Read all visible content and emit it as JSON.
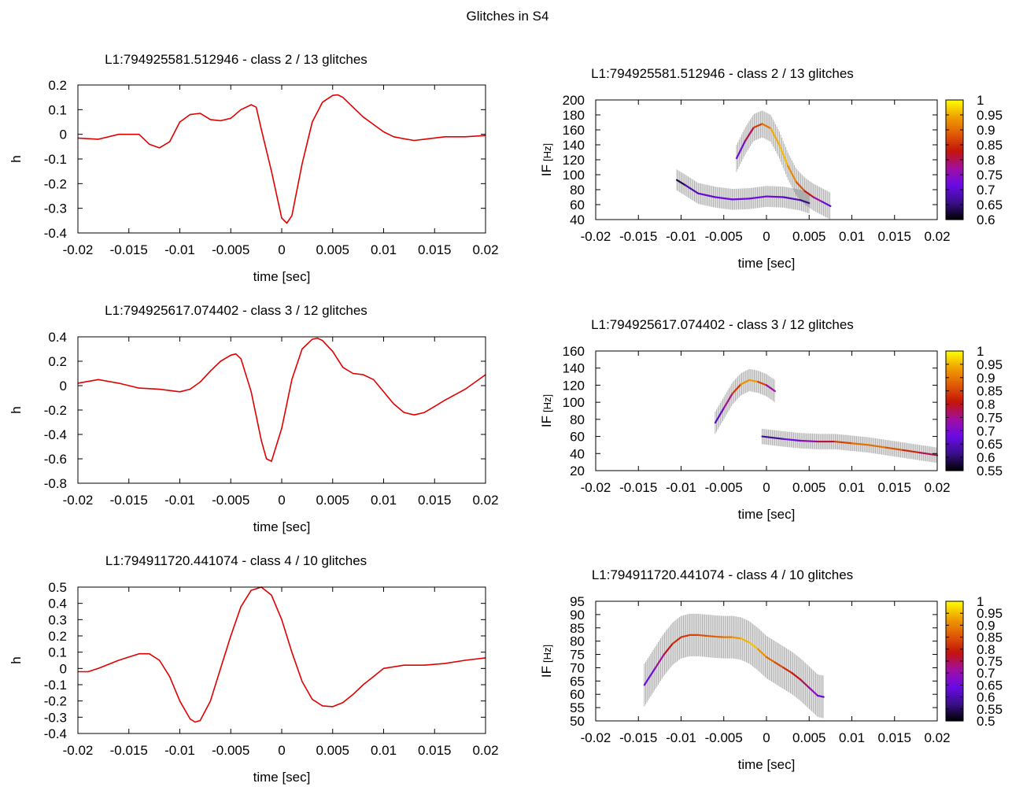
{
  "figure": {
    "title": "Glitches in S4"
  },
  "colorbar_colors": [
    "#000000",
    "#3a0f8a",
    "#6a0ae6",
    "#a00fa0",
    "#c4140a",
    "#e05a06",
    "#f0a000",
    "#ffff00"
  ],
  "chart_data": [
    {
      "id": "wave-1",
      "type": "line",
      "title": "L1:794925581.512946 - class 2 / 13 glitches",
      "xlabel": "time [sec]",
      "ylabel": "h",
      "xlim": [
        -0.02,
        0.02
      ],
      "ylim": [
        -0.4,
        0.2
      ],
      "xticks": [
        -0.02,
        -0.015,
        -0.01,
        -0.005,
        0,
        0.005,
        0.01,
        0.015,
        0.02
      ],
      "xtick_labels": [
        "-0.02",
        "-0.015",
        "-0.01",
        "-0.005",
        "0",
        "0.005",
        "0.01",
        "0.015",
        "0.02"
      ],
      "yticks": [
        -0.4,
        -0.3,
        -0.2,
        -0.1,
        0,
        0.1,
        0.2
      ],
      "ytick_labels": [
        "-0.4",
        "-0.3",
        "-0.2",
        "-0.1",
        "0",
        "0.1",
        "0.2"
      ],
      "series": [
        {
          "name": "h",
          "color": "#e00000",
          "x": [
            -0.02,
            -0.018,
            -0.016,
            -0.014,
            -0.013,
            -0.012,
            -0.011,
            -0.01,
            -0.009,
            -0.008,
            -0.007,
            -0.006,
            -0.005,
            -0.004,
            -0.003,
            -0.0025,
            -0.002,
            -0.001,
            0,
            0.0005,
            0.001,
            0.002,
            0.003,
            0.004,
            0.005,
            0.0055,
            0.006,
            0.007,
            0.008,
            0.009,
            0.01,
            0.011,
            0.012,
            0.013,
            0.014,
            0.016,
            0.018,
            0.02
          ],
          "y": [
            -0.015,
            -0.02,
            0.0,
            0.0,
            -0.04,
            -0.055,
            -0.03,
            0.05,
            0.08,
            0.085,
            0.06,
            0.055,
            0.065,
            0.1,
            0.12,
            0.11,
            0.02,
            -0.15,
            -0.34,
            -0.36,
            -0.33,
            -0.12,
            0.05,
            0.13,
            0.158,
            0.16,
            0.15,
            0.11,
            0.07,
            0.04,
            0.01,
            -0.01,
            -0.018,
            -0.025,
            -0.02,
            -0.01,
            -0.01,
            -0.005
          ]
        }
      ]
    },
    {
      "id": "if-1",
      "type": "line",
      "title": "L1:794925581.512946 - class 2 / 13 glitches",
      "xlabel": "time [sec]",
      "ylabel": "IF",
      "ylabel_unit": "[Hz]",
      "xlim": [
        -0.02,
        0.02
      ],
      "ylim": [
        40,
        200
      ],
      "xticks": [
        -0.02,
        -0.015,
        -0.01,
        -0.005,
        0,
        0.005,
        0.01,
        0.015,
        0.02
      ],
      "xtick_labels": [
        "-0.02",
        "-0.015",
        "-0.01",
        "-0.005",
        "0",
        "0.005",
        "0.01",
        "0.015",
        "0.02"
      ],
      "yticks": [
        40,
        60,
        80,
        100,
        120,
        140,
        160,
        180,
        200
      ],
      "ytick_labels": [
        "40",
        "60",
        "80",
        "100",
        "120",
        "140",
        "160",
        "180",
        "200"
      ],
      "cb_range": [
        0.6,
        1
      ],
      "cb_ticks": [
        0.6,
        0.65,
        0.7,
        0.75,
        0.8,
        0.85,
        0.9,
        0.95,
        1
      ],
      "cb_tick_labels": [
        "0.6",
        "0.65",
        "0.7",
        "0.75",
        "0.8",
        "0.85",
        "0.9",
        "0.95",
        "1"
      ],
      "series": [
        {
          "name": "component-1",
          "error": 14,
          "x": [
            -0.0105,
            -0.0095,
            -0.008,
            -0.006,
            -0.004,
            -0.002,
            0,
            0.002,
            0.004,
            0.005
          ],
          "y": [
            93,
            86,
            75,
            70,
            67,
            68,
            71,
            70,
            66,
            62
          ],
          "c": [
            0.6,
            0.66,
            0.7,
            0.71,
            0.72,
            0.72,
            0.72,
            0.7,
            0.67,
            0.64
          ]
        },
        {
          "name": "component-2",
          "error": 18,
          "x": [
            -0.0035,
            -0.0025,
            -0.0015,
            -0.0005,
            0.0005,
            0.0015,
            0.0025,
            0.0035,
            0.0045,
            0.0055,
            0.0065,
            0.0075
          ],
          "y": [
            122,
            145,
            163,
            168,
            162,
            140,
            112,
            90,
            78,
            70,
            64,
            58
          ],
          "c": [
            0.68,
            0.76,
            0.84,
            0.88,
            0.93,
            0.97,
            0.95,
            0.9,
            0.86,
            0.8,
            0.74,
            0.68
          ]
        }
      ]
    },
    {
      "id": "wave-2",
      "type": "line",
      "title": "L1:794925617.074402 - class 3 / 12 glitches",
      "xlabel": "time [sec]",
      "ylabel": "h",
      "xlim": [
        -0.02,
        0.02
      ],
      "ylim": [
        -0.8,
        0.4
      ],
      "xticks": [
        -0.02,
        -0.015,
        -0.01,
        -0.005,
        0,
        0.005,
        0.01,
        0.015,
        0.02
      ],
      "xtick_labels": [
        "-0.02",
        "-0.015",
        "-0.01",
        "-0.005",
        "0",
        "0.005",
        "0.01",
        "0.015",
        "0.02"
      ],
      "yticks": [
        -0.8,
        -0.6,
        -0.4,
        -0.2,
        0,
        0.2,
        0.4
      ],
      "ytick_labels": [
        "-0.8",
        "-0.6",
        "-0.4",
        "-0.2",
        "0",
        "0.2",
        "0.4"
      ],
      "series": [
        {
          "name": "h",
          "color": "#e00000",
          "x": [
            -0.02,
            -0.018,
            -0.016,
            -0.014,
            -0.012,
            -0.01,
            -0.009,
            -0.008,
            -0.007,
            -0.006,
            -0.005,
            -0.0045,
            -0.004,
            -0.003,
            -0.002,
            -0.0015,
            -0.001,
            0,
            0.001,
            0.002,
            0.003,
            0.0035,
            0.004,
            0.005,
            0.006,
            0.007,
            0.008,
            0.009,
            0.01,
            0.011,
            0.012,
            0.013,
            0.014,
            0.015,
            0.016,
            0.018,
            0.02
          ],
          "y": [
            0.02,
            0.05,
            0.02,
            -0.02,
            -0.03,
            -0.05,
            -0.03,
            0.03,
            0.12,
            0.2,
            0.25,
            0.26,
            0.22,
            -0.05,
            -0.45,
            -0.6,
            -0.62,
            -0.35,
            0.05,
            0.3,
            0.38,
            0.39,
            0.37,
            0.28,
            0.15,
            0.1,
            0.09,
            0.05,
            -0.05,
            -0.15,
            -0.22,
            -0.24,
            -0.22,
            -0.17,
            -0.12,
            -0.03,
            0.09
          ]
        }
      ]
    },
    {
      "id": "if-2",
      "type": "line",
      "title": "L1:794925617.074402 - class 3 / 12 glitches",
      "xlabel": "time [sec]",
      "ylabel": "IF",
      "ylabel_unit": "[Hz]",
      "xlim": [
        -0.02,
        0.02
      ],
      "ylim": [
        20,
        160
      ],
      "xticks": [
        -0.02,
        -0.015,
        -0.01,
        -0.005,
        0,
        0.005,
        0.01,
        0.015,
        0.02
      ],
      "xtick_labels": [
        "-0.02",
        "-0.015",
        "-0.01",
        "-0.005",
        "0",
        "0.005",
        "0.01",
        "0.015",
        "0.02"
      ],
      "yticks": [
        20,
        40,
        60,
        80,
        100,
        120,
        140,
        160
      ],
      "ytick_labels": [
        "20",
        "40",
        "60",
        "80",
        "100",
        "120",
        "140",
        "160"
      ],
      "cb_range": [
        0.55,
        1
      ],
      "cb_ticks": [
        0.55,
        0.6,
        0.65,
        0.7,
        0.75,
        0.8,
        0.85,
        0.9,
        0.95,
        1
      ],
      "cb_tick_labels": [
        "0.55",
        "0.6",
        "0.65",
        "0.7",
        "0.75",
        "0.8",
        "0.85",
        "0.9",
        "0.95",
        "1"
      ],
      "series": [
        {
          "name": "component-1",
          "error": 13,
          "x": [
            -0.006,
            -0.005,
            -0.004,
            -0.003,
            -0.002,
            -0.001,
            0,
            0.001
          ],
          "y": [
            76,
            93,
            110,
            121,
            126,
            124,
            120,
            113
          ],
          "c": [
            0.62,
            0.7,
            0.8,
            0.88,
            0.96,
            0.9,
            0.8,
            0.68
          ]
        },
        {
          "name": "component-2",
          "error": 9,
          "x": [
            -0.0005,
            0.002,
            0.004,
            0.006,
            0.008,
            0.01,
            0.012,
            0.014,
            0.016,
            0.018,
            0.02
          ],
          "y": [
            60,
            57,
            55,
            54,
            54,
            52,
            50,
            47,
            44,
            41,
            38
          ],
          "c": [
            0.58,
            0.66,
            0.7,
            0.75,
            0.82,
            0.88,
            0.9,
            0.88,
            0.85,
            0.8,
            0.75
          ]
        }
      ]
    },
    {
      "id": "wave-3",
      "type": "line",
      "title": "L1:794911720.441074 - class 4 / 10 glitches",
      "xlabel": "time [sec]",
      "ylabel": "h",
      "xlim": [
        -0.02,
        0.02
      ],
      "ylim": [
        -0.4,
        0.5
      ],
      "xticks": [
        -0.02,
        -0.015,
        -0.01,
        -0.005,
        0,
        0.005,
        0.01,
        0.015,
        0.02
      ],
      "xtick_labels": [
        "-0.02",
        "-0.015",
        "-0.01",
        "-0.005",
        "0",
        "0.005",
        "0.01",
        "0.015",
        "0.02"
      ],
      "yticks": [
        -0.4,
        -0.3,
        -0.2,
        -0.1,
        0,
        0.1,
        0.2,
        0.3,
        0.4,
        0.5
      ],
      "ytick_labels": [
        "-0.4",
        "-0.3",
        "-0.2",
        "-0.1",
        "0",
        "0.1",
        "0.2",
        "0.3",
        "0.4",
        "0.5"
      ],
      "series": [
        {
          "name": "h",
          "color": "#e00000",
          "x": [
            -0.02,
            -0.019,
            -0.018,
            -0.016,
            -0.014,
            -0.013,
            -0.012,
            -0.011,
            -0.01,
            -0.009,
            -0.0085,
            -0.008,
            -0.007,
            -0.006,
            -0.005,
            -0.004,
            -0.003,
            -0.002,
            -0.001,
            0,
            0.001,
            0.002,
            0.003,
            0.004,
            0.005,
            0.006,
            0.007,
            0.008,
            0.009,
            0.01,
            0.012,
            0.014,
            0.016,
            0.018,
            0.02
          ],
          "y": [
            -0.02,
            -0.02,
            0.0,
            0.05,
            0.09,
            0.09,
            0.05,
            -0.05,
            -0.2,
            -0.31,
            -0.33,
            -0.32,
            -0.2,
            0.0,
            0.2,
            0.38,
            0.48,
            0.5,
            0.45,
            0.3,
            0.1,
            -0.08,
            -0.19,
            -0.23,
            -0.235,
            -0.21,
            -0.16,
            -0.1,
            -0.05,
            0.0,
            0.02,
            0.02,
            0.03,
            0.05,
            0.065
          ]
        }
      ]
    },
    {
      "id": "if-3",
      "type": "line",
      "title": "L1:794911720.441074 - class 4 / 10 glitches",
      "xlabel": "time [sec]",
      "ylabel": "IF",
      "ylabel_unit": "[Hz]",
      "xlim": [
        -0.02,
        0.02
      ],
      "ylim": [
        50,
        95
      ],
      "xticks": [
        -0.02,
        -0.015,
        -0.01,
        -0.005,
        0,
        0.005,
        0.01,
        0.015,
        0.02
      ],
      "xtick_labels": [
        "-0.02",
        "-0.015",
        "-0.01",
        "-0.005",
        "0",
        "0.005",
        "0.01",
        "0.015",
        "0.02"
      ],
      "yticks": [
        50,
        55,
        60,
        65,
        70,
        75,
        80,
        85,
        90,
        95
      ],
      "ytick_labels": [
        "50",
        "55",
        "60",
        "65",
        "70",
        "75",
        "80",
        "85",
        "90",
        "95"
      ],
      "cb_range": [
        0.5,
        1
      ],
      "cb_ticks": [
        0.5,
        0.55,
        0.6,
        0.65,
        0.7,
        0.75,
        0.8,
        0.85,
        0.9,
        0.95,
        1
      ],
      "cb_tick_labels": [
        "0.5",
        "0.55",
        "0.6",
        "0.65",
        "0.7",
        "0.75",
        "0.8",
        "0.85",
        "0.9",
        "0.95",
        "1"
      ],
      "series": [
        {
          "name": "component-1",
          "error": 8,
          "x": [
            -0.0143,
            -0.013,
            -0.012,
            -0.011,
            -0.01,
            -0.009,
            -0.008,
            -0.007,
            -0.006,
            -0.005,
            -0.004,
            -0.003,
            -0.002,
            -0.001,
            0,
            0.001,
            0.002,
            0.003,
            0.004,
            0.005,
            0.006,
            0.0067
          ],
          "y": [
            63.5,
            70,
            75,
            79,
            81.5,
            82.3,
            82.3,
            82,
            81.7,
            81.5,
            81.5,
            81,
            79.5,
            77,
            74,
            72,
            70,
            68,
            65.5,
            62.5,
            59.5,
            59
          ],
          "c": [
            0.62,
            0.68,
            0.75,
            0.8,
            0.82,
            0.83,
            0.84,
            0.85,
            0.86,
            0.88,
            0.9,
            0.93,
            0.96,
            0.95,
            0.88,
            0.86,
            0.82,
            0.8,
            0.77,
            0.72,
            0.66,
            0.6
          ]
        }
      ]
    }
  ]
}
